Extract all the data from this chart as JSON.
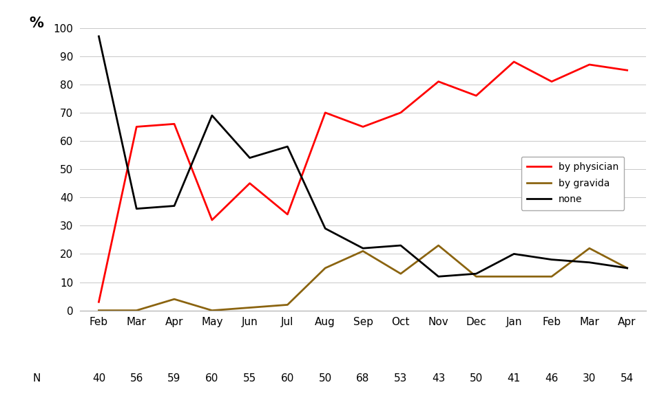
{
  "months": [
    "Feb",
    "Mar",
    "Apr",
    "May",
    "Jun",
    "Jul",
    "Aug",
    "Sep",
    "Oct",
    "Nov",
    "Dec",
    "Jan",
    "Feb",
    "Mar",
    "Apr"
  ],
  "n_values": [
    "40",
    "56",
    "59",
    "60",
    "55",
    "60",
    "50",
    "68",
    "53",
    "43",
    "50",
    "41",
    "46",
    "30",
    "54"
  ],
  "physician": [
    3,
    65,
    66,
    32,
    45,
    34,
    70,
    65,
    70,
    81,
    76,
    88,
    81,
    87,
    85
  ],
  "gravida": [
    0,
    0,
    4,
    0,
    1,
    2,
    15,
    21,
    13,
    23,
    12,
    12,
    12,
    22,
    15
  ],
  "none": [
    97,
    36,
    37,
    69,
    54,
    58,
    29,
    22,
    23,
    12,
    13,
    20,
    18,
    17,
    15
  ],
  "physician_color": "#FF0000",
  "gravida_color": "#8B6410",
  "none_color": "#000000",
  "ylabel": "%",
  "ylim": [
    0,
    100
  ],
  "yticks": [
    0,
    10,
    20,
    30,
    40,
    50,
    60,
    70,
    80,
    90,
    100
  ],
  "legend_labels": [
    "by physician",
    "by gravida",
    "none"
  ],
  "background_color": "#FFFFFF",
  "grid_color": "#C8C8C8"
}
